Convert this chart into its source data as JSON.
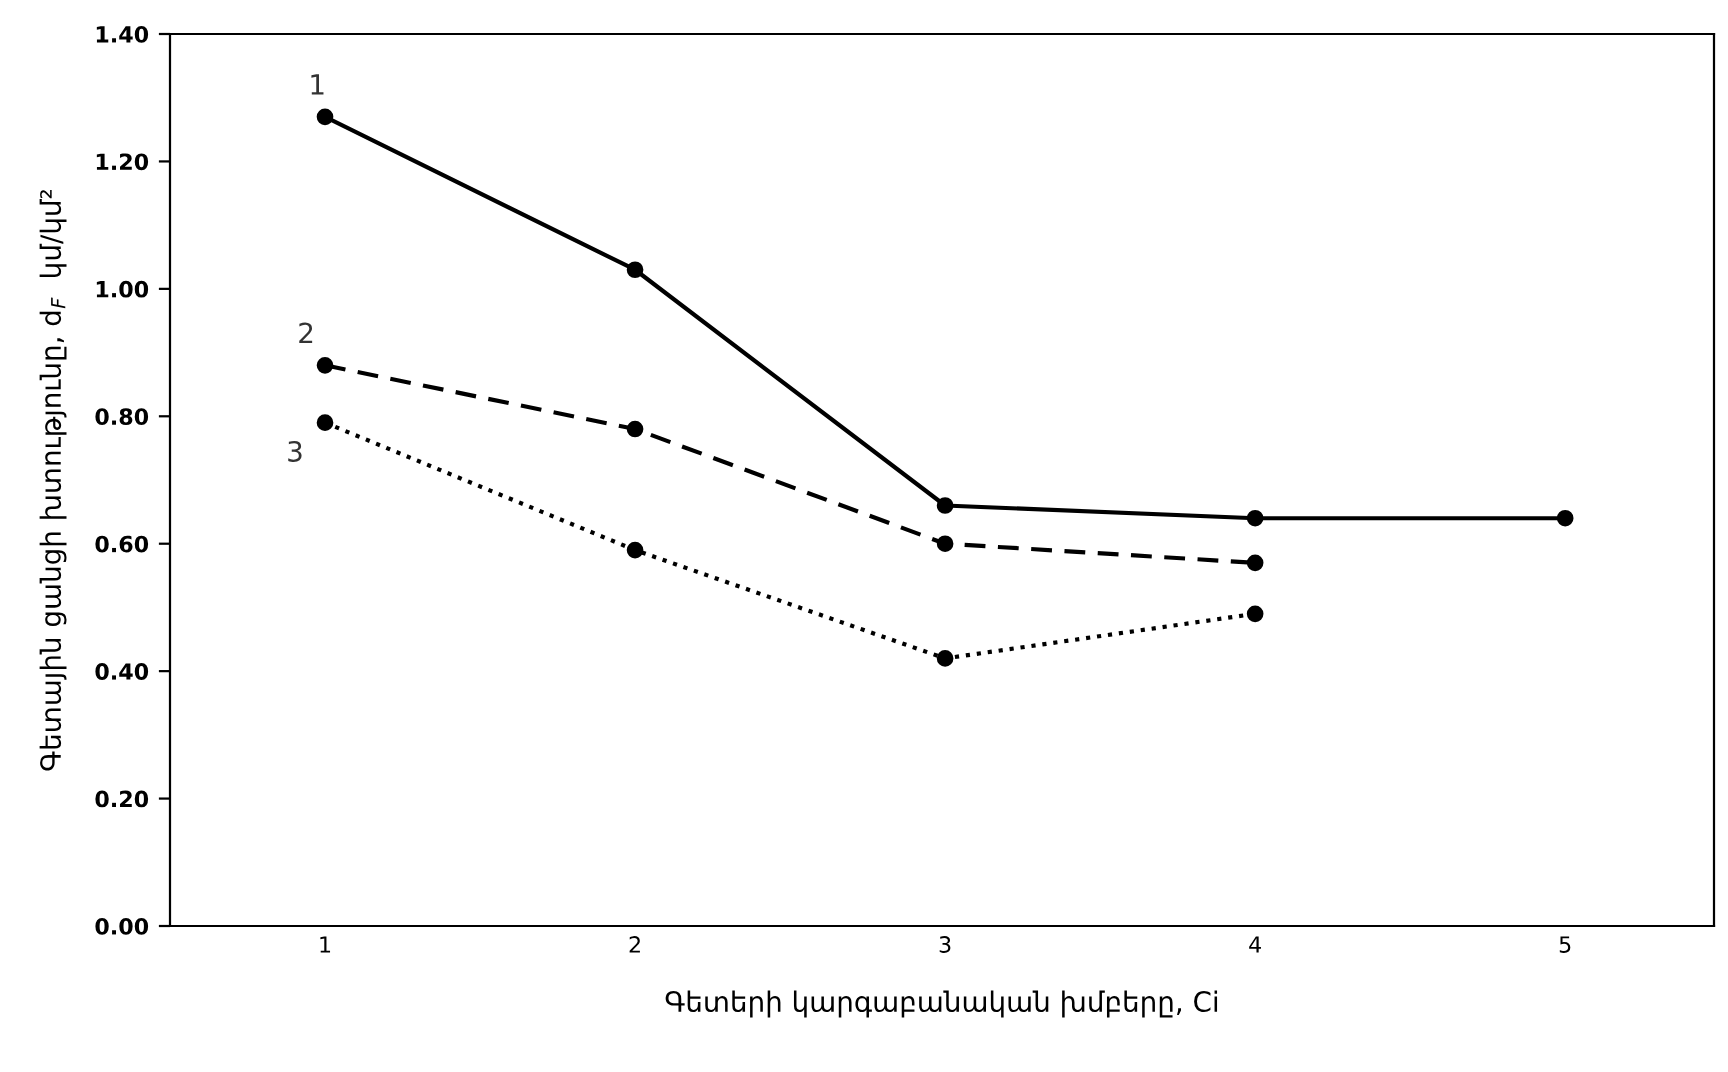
{
  "chart_data": {
    "type": "line",
    "xlabel": "Գետերի կարգաբանական խմբերը, Ci",
    "ylabel": "Գետային ցանցի խտությունը, d$_{F}$  կմ/կմ²",
    "categories": [
      "1",
      "2",
      "3",
      "4",
      "5"
    ],
    "series": [
      {
        "name": "1",
        "color": "#000000",
        "line_style": "solid",
        "values": [
          1.27,
          1.03,
          0.66,
          0.64,
          0.64
        ]
      },
      {
        "name": "2",
        "color": "#000000",
        "line_style": "dashed",
        "values": [
          0.88,
          0.78,
          0.6,
          0.57,
          null
        ]
      },
      {
        "name": "3",
        "color": "#000000",
        "line_style": "dotted",
        "values": [
          0.79,
          0.59,
          0.42,
          0.49,
          null
        ]
      }
    ],
    "ylim": [
      0,
      1.4
    ],
    "yticks": [
      {
        "value": 0,
        "label": "0.00"
      },
      {
        "value": 0.2,
        "label": "0.20"
      },
      {
        "value": 0.4,
        "label": "0.40"
      },
      {
        "value": 0.6,
        "label": "0.60"
      },
      {
        "value": 0.8,
        "label": "0.80"
      },
      {
        "value": 1.0,
        "label": "1.00"
      },
      {
        "value": 1.2,
        "label": "1.20"
      },
      {
        "value": 1.4,
        "label": "1.40"
      }
    ],
    "marker": "circle",
    "grid": false,
    "legend": false
  }
}
